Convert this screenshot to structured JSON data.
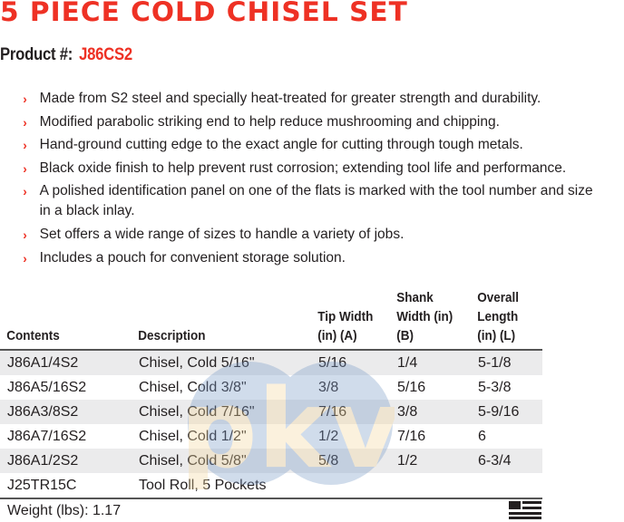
{
  "title": "5 PIECE COLD CHISEL SET",
  "product": {
    "label": "Product #:",
    "code": "J86CS2"
  },
  "features": [
    "Made from S2 steel and specially heat-treated for greater strength and durability.",
    "Modified parabolic striking end to help reduce mushrooming and chipping.",
    "Hand-ground cutting edge to the exact angle for cutting through tough metals.",
    "Black oxide finish to help prevent rust corrosion; extending tool life and performance.",
    "A polished identification panel on one of the flats is marked with the tool number and size in a black inlay.",
    "Set offers a wide range of sizes to handle a variety of jobs.",
    "Includes a pouch for convenient storage solution."
  ],
  "table": {
    "headers": [
      "Contents",
      "Description",
      "Tip Width (in) (A)",
      "Shank Width (in) (B)",
      "Overall Length (in) (L)"
    ],
    "rows": [
      [
        "J86A1/4S2",
        "Chisel, Cold 5/16\"",
        "5/16",
        "1/4",
        "5-1/8"
      ],
      [
        "J86A5/16S2",
        "Chisel, Cold 3/8\"",
        "3/8",
        "5/16",
        "5-3/8"
      ],
      [
        "J86A3/8S2",
        "Chisel, Cold 7/16\"",
        "7/16",
        "3/8",
        "5-9/16"
      ],
      [
        "J86A7/16S2",
        "Chisel, Cold 1/2\"",
        "1/2",
        "7/16",
        "6"
      ],
      [
        "J86A1/2S2",
        "Chisel, Cold 5/8\"",
        "5/8",
        "1/2",
        "6-3/4"
      ],
      [
        "J25TR15C",
        "Tool Roll, 5 Pockets",
        "",
        "",
        ""
      ]
    ]
  },
  "weight": "Weight (lbs): 1.17",
  "watermark": "pkv",
  "colors": {
    "accent": "#ee3124",
    "text": "#231f20",
    "row_shade": "#e7e8e9"
  },
  "icons": {
    "bullet": "chevron-right-icon",
    "flag": "usa-flag-icon"
  }
}
